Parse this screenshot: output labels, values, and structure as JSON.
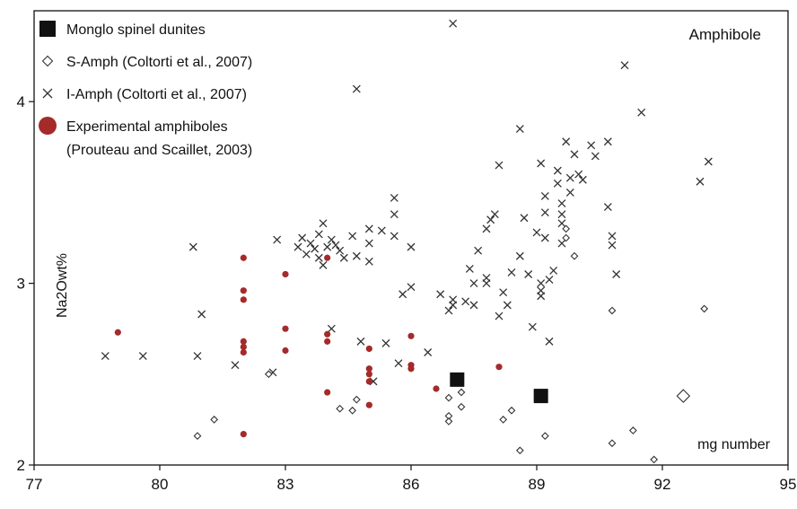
{
  "chart_data": {
    "type": "scatter",
    "title": "",
    "panel_label": "Amphibole",
    "xlabel": "mg number",
    "ylabel": "Na2Owt%",
    "xlim": [
      77,
      95
    ],
    "ylim": [
      2,
      4.5
    ],
    "x_ticks": [
      77,
      80,
      83,
      86,
      89,
      92,
      95
    ],
    "y_ticks": [
      2,
      3,
      4
    ],
    "grid": false,
    "legend_position": "top-left",
    "legend": [
      {
        "symbol": "square",
        "label": "Monglo spinel dunites"
      },
      {
        "symbol": "diamond",
        "label": "S-Amph (Coltorti et al., 2007)"
      },
      {
        "symbol": "x",
        "label": "I-Amph (Coltorti et al., 2007)"
      },
      {
        "symbol": "circle",
        "label": "Experimental amphiboles",
        "label2": "(Prouteau and Scaillet, 2003)"
      }
    ],
    "series": [
      {
        "name": "Monglo spinel dunites",
        "marker": "square",
        "color": "#111111",
        "points": [
          [
            87.1,
            2.47
          ],
          [
            89.1,
            2.38
          ]
        ]
      },
      {
        "name": "S-Amph (Coltorti et al., 2007)",
        "marker": "diamond",
        "color": "#333333",
        "points": [
          [
            80.9,
            2.16
          ],
          [
            81.3,
            2.25
          ],
          [
            82.6,
            2.5
          ],
          [
            84.3,
            2.31
          ],
          [
            84.6,
            2.3
          ],
          [
            84.7,
            2.36
          ],
          [
            86.9,
            2.37
          ],
          [
            86.9,
            2.27
          ],
          [
            86.9,
            2.24
          ],
          [
            87.2,
            2.32
          ],
          [
            87.2,
            2.4
          ],
          [
            88.2,
            2.25
          ],
          [
            88.4,
            2.3
          ],
          [
            88.6,
            2.08
          ],
          [
            89.2,
            2.16
          ],
          [
            90.8,
            2.12
          ],
          [
            90.8,
            2.85
          ],
          [
            91.3,
            2.19
          ],
          [
            91.8,
            2.03
          ],
          [
            92.5,
            2.38
          ],
          [
            93.0,
            2.86
          ],
          [
            89.7,
            3.25
          ],
          [
            89.7,
            3.3
          ],
          [
            89.9,
            3.15
          ]
        ]
      },
      {
        "name": "I-Amph (Coltorti et al., 2007)",
        "marker": "x",
        "color": "#333333",
        "points": [
          [
            78.7,
            2.6
          ],
          [
            79.6,
            2.6
          ],
          [
            80.8,
            3.2
          ],
          [
            80.9,
            2.6
          ],
          [
            81.0,
            2.83
          ],
          [
            81.8,
            2.55
          ],
          [
            82.7,
            2.51
          ],
          [
            82.8,
            3.24
          ],
          [
            83.3,
            3.2
          ],
          [
            83.4,
            3.25
          ],
          [
            83.5,
            3.16
          ],
          [
            83.6,
            3.22
          ],
          [
            83.7,
            3.19
          ],
          [
            83.8,
            3.14
          ],
          [
            83.8,
            3.27
          ],
          [
            83.9,
            3.33
          ],
          [
            83.9,
            3.1
          ],
          [
            84.0,
            3.2
          ],
          [
            84.1,
            3.24
          ],
          [
            84.2,
            3.21
          ],
          [
            84.3,
            3.18
          ],
          [
            84.4,
            3.14
          ],
          [
            84.1,
            2.75
          ],
          [
            84.7,
            4.07
          ],
          [
            84.6,
            3.26
          ],
          [
            84.7,
            3.15
          ],
          [
            84.8,
            2.68
          ],
          [
            85.0,
            3.3
          ],
          [
            85.0,
            3.22
          ],
          [
            85.0,
            3.12
          ],
          [
            85.1,
            2.46
          ],
          [
            85.3,
            3.29
          ],
          [
            85.4,
            2.67
          ],
          [
            85.6,
            3.26
          ],
          [
            85.6,
            3.38
          ],
          [
            85.6,
            3.47
          ],
          [
            85.7,
            2.56
          ],
          [
            86.0,
            3.2
          ],
          [
            86.0,
            2.98
          ],
          [
            85.8,
            2.94
          ],
          [
            86.4,
            2.62
          ],
          [
            86.7,
            2.94
          ],
          [
            86.9,
            2.85
          ],
          [
            87.0,
            2.88
          ],
          [
            87.0,
            2.91
          ],
          [
            87.0,
            4.43
          ],
          [
            87.3,
            2.9
          ],
          [
            87.4,
            3.08
          ],
          [
            87.5,
            3.0
          ],
          [
            87.5,
            2.88
          ],
          [
            87.6,
            3.18
          ],
          [
            87.8,
            3.3
          ],
          [
            87.9,
            3.35
          ],
          [
            87.8,
            3.03
          ],
          [
            87.8,
            3.0
          ],
          [
            88.0,
            3.38
          ],
          [
            88.1,
            3.65
          ],
          [
            88.1,
            2.82
          ],
          [
            88.2,
            2.95
          ],
          [
            88.3,
            2.88
          ],
          [
            88.4,
            3.06
          ],
          [
            88.6,
            3.85
          ],
          [
            88.6,
            3.15
          ],
          [
            88.7,
            3.36
          ],
          [
            88.8,
            3.05
          ],
          [
            88.9,
            2.76
          ],
          [
            89.0,
            3.28
          ],
          [
            89.1,
            3.66
          ],
          [
            89.2,
            3.48
          ],
          [
            89.2,
            3.39
          ],
          [
            89.2,
            3.25
          ],
          [
            89.1,
            3.0
          ],
          [
            89.1,
            2.96
          ],
          [
            89.1,
            2.93
          ],
          [
            89.3,
            2.68
          ],
          [
            89.5,
            3.62
          ],
          [
            89.5,
            3.55
          ],
          [
            89.6,
            3.44
          ],
          [
            89.6,
            3.38
          ],
          [
            89.6,
            3.33
          ],
          [
            89.6,
            3.22
          ],
          [
            89.7,
            3.78
          ],
          [
            89.8,
            3.5
          ],
          [
            89.8,
            3.58
          ],
          [
            89.9,
            3.71
          ],
          [
            90.0,
            3.6
          ],
          [
            90.1,
            3.57
          ],
          [
            90.3,
            3.76
          ],
          [
            90.4,
            3.7
          ],
          [
            90.7,
            3.78
          ],
          [
            90.7,
            3.42
          ],
          [
            90.8,
            3.26
          ],
          [
            90.8,
            3.21
          ],
          [
            90.9,
            3.05
          ],
          [
            91.1,
            4.2
          ],
          [
            91.5,
            3.94
          ],
          [
            92.9,
            3.56
          ],
          [
            93.1,
            3.67
          ],
          [
            89.4,
            3.07
          ],
          [
            89.3,
            3.02
          ]
        ]
      },
      {
        "name": "Experimental amphiboles",
        "marker": "circle",
        "color": "#a52a2a",
        "points": [
          [
            79.0,
            2.73
          ],
          [
            82.0,
            3.14
          ],
          [
            82.0,
            2.96
          ],
          [
            82.0,
            2.91
          ],
          [
            82.0,
            2.68
          ],
          [
            82.0,
            2.65
          ],
          [
            82.0,
            2.62
          ],
          [
            82.0,
            2.17
          ],
          [
            83.0,
            3.05
          ],
          [
            83.0,
            2.75
          ],
          [
            83.0,
            2.63
          ],
          [
            84.0,
            3.14
          ],
          [
            84.0,
            2.72
          ],
          [
            84.0,
            2.68
          ],
          [
            84.0,
            2.4
          ],
          [
            85.0,
            2.64
          ],
          [
            85.0,
            2.53
          ],
          [
            85.0,
            2.5
          ],
          [
            85.0,
            2.46
          ],
          [
            85.0,
            2.33
          ],
          [
            86.0,
            2.71
          ],
          [
            86.0,
            2.55
          ],
          [
            86.0,
            2.53
          ],
          [
            86.6,
            2.42
          ],
          [
            88.1,
            2.54
          ]
        ]
      }
    ]
  }
}
